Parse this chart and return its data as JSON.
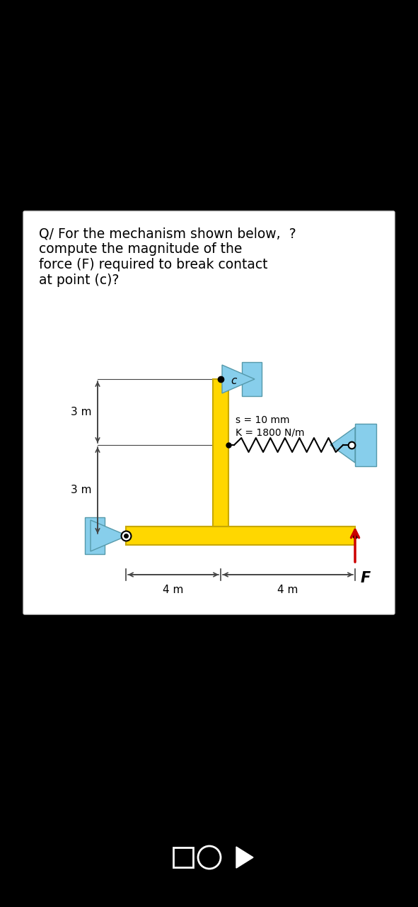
{
  "bg_color": "#000000",
  "panel_color": "#ffffff",
  "yellow_color": "#FFD700",
  "yellow_edge": "#c8a800",
  "blue_color": "#87CEEB",
  "blue_edge": "#5599aa",
  "dim_color": "#444444",
  "force_color": "#CC0000",
  "question_text": "Q/ For the mechanism shown below,  ?\ncompute the magnitude of the\nforce (F) required to break contact\nat point (c)?",
  "s_label": "s = 10 mm",
  "k_label": "K = 1800 N/m",
  "nav_sq_color": "#ffffff",
  "nav_circ_color": "#ffffff",
  "nav_tri_color": "#ffffff"
}
